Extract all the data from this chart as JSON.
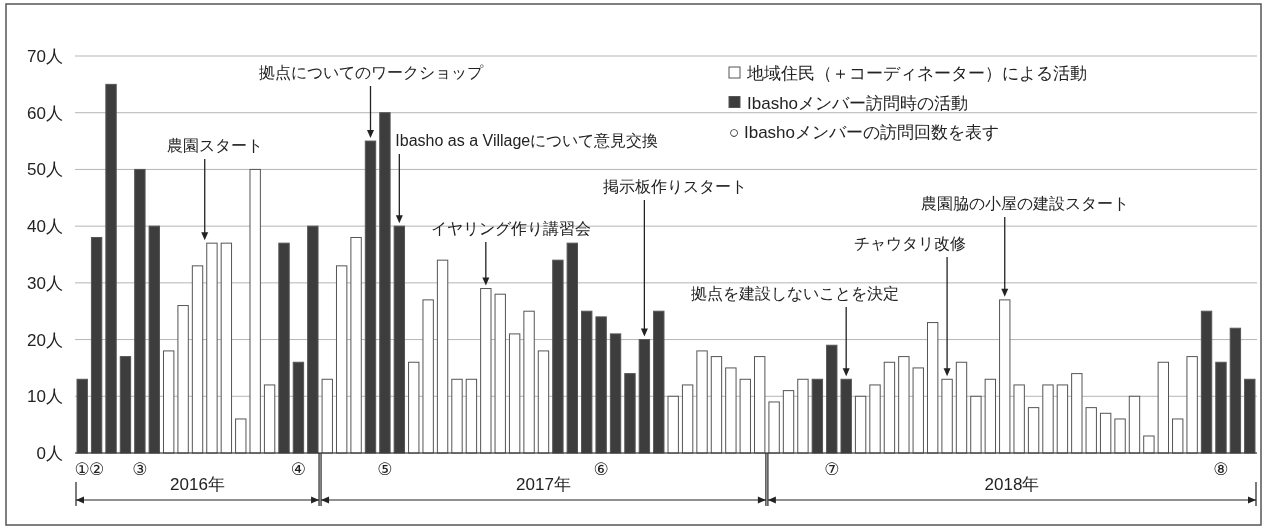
{
  "chart_data": {
    "type": "bar",
    "grid": "y",
    "legend": "top right",
    "categories": [
      "①",
      "②",
      null,
      null,
      "③",
      null,
      null,
      null,
      null,
      null,
      null,
      null,
      null,
      null,
      null,
      "④",
      null,
      null,
      null,
      null,
      null,
      "⑤",
      null,
      null,
      null,
      null,
      null,
      null,
      null,
      null,
      null,
      null,
      null,
      null,
      null,
      null,
      "⑥",
      null,
      null,
      null,
      null,
      null,
      null,
      null,
      null,
      null,
      null,
      null,
      null,
      null,
      null,
      null,
      "⑦",
      null,
      null,
      null,
      null,
      null,
      null,
      null,
      null,
      null,
      null,
      null,
      null,
      null,
      null,
      null,
      null,
      null,
      null,
      null,
      null,
      null,
      null,
      null,
      null,
      null,
      null,
      "⑧",
      null,
      null
    ],
    "ylim": [
      0,
      70
    ],
    "yticks": [
      {
        "value": 0,
        "label": "0人"
      },
      {
        "value": 10,
        "label": "10人"
      },
      {
        "value": 20,
        "label": "20人"
      },
      {
        "value": 30,
        "label": "30人"
      },
      {
        "value": 40,
        "label": "40人"
      },
      {
        "value": 50,
        "label": "50人"
      },
      {
        "value": 60,
        "label": "60人"
      },
      {
        "value": 70,
        "label": "70人"
      }
    ],
    "series": [
      {
        "name": "地域住民（＋コーディネーター）による活動",
        "color": "#ffffff",
        "values": [
          null,
          null,
          null,
          null,
          null,
          null,
          18,
          26,
          33,
          37,
          37,
          6,
          50,
          12,
          null,
          null,
          null,
          13,
          33,
          38,
          null,
          null,
          null,
          16,
          27,
          34,
          13,
          13,
          29,
          28,
          21,
          25,
          18,
          null,
          null,
          null,
          null,
          null,
          null,
          null,
          null,
          10,
          12,
          18,
          17,
          15,
          13,
          17,
          9,
          11,
          13,
          null,
          null,
          null,
          10,
          12,
          16,
          17,
          15,
          23,
          13,
          16,
          10,
          13,
          27,
          12,
          8,
          12,
          12,
          14,
          8,
          7,
          6,
          10,
          3,
          16,
          6,
          17,
          null,
          null,
          null,
          null
        ]
      },
      {
        "name": "Ibashoメンバー訪問時の活動",
        "color": "#3d3d3d",
        "values": [
          13,
          38,
          65,
          17,
          50,
          40,
          null,
          null,
          null,
          null,
          null,
          null,
          null,
          null,
          37,
          16,
          40,
          null,
          null,
          null,
          55,
          60,
          40,
          null,
          null,
          null,
          null,
          null,
          null,
          null,
          null,
          null,
          null,
          34,
          37,
          25,
          24,
          21,
          14,
          20,
          25,
          null,
          null,
          null,
          null,
          null,
          null,
          null,
          null,
          null,
          null,
          13,
          19,
          13,
          null,
          null,
          null,
          null,
          null,
          null,
          null,
          null,
          null,
          null,
          null,
          null,
          null,
          null,
          null,
          null,
          null,
          null,
          null,
          null,
          null,
          null,
          null,
          null,
          25,
          16,
          22,
          13
        ]
      }
    ],
    "annotations": [
      "○ Ibashoメンバーの訪問回数を表す",
      "農園スタート",
      "拠点についてのワークショップ",
      "Ibasho as a Villageについて意見交換",
      "イヤリング作り講習会",
      "掲示板作りスタート",
      "拠点を建設しないことを決定",
      "チャウタリ改修",
      "農園脇の小屋の建設スタート",
      "2016年",
      "2017年",
      "2018年"
    ]
  }
}
